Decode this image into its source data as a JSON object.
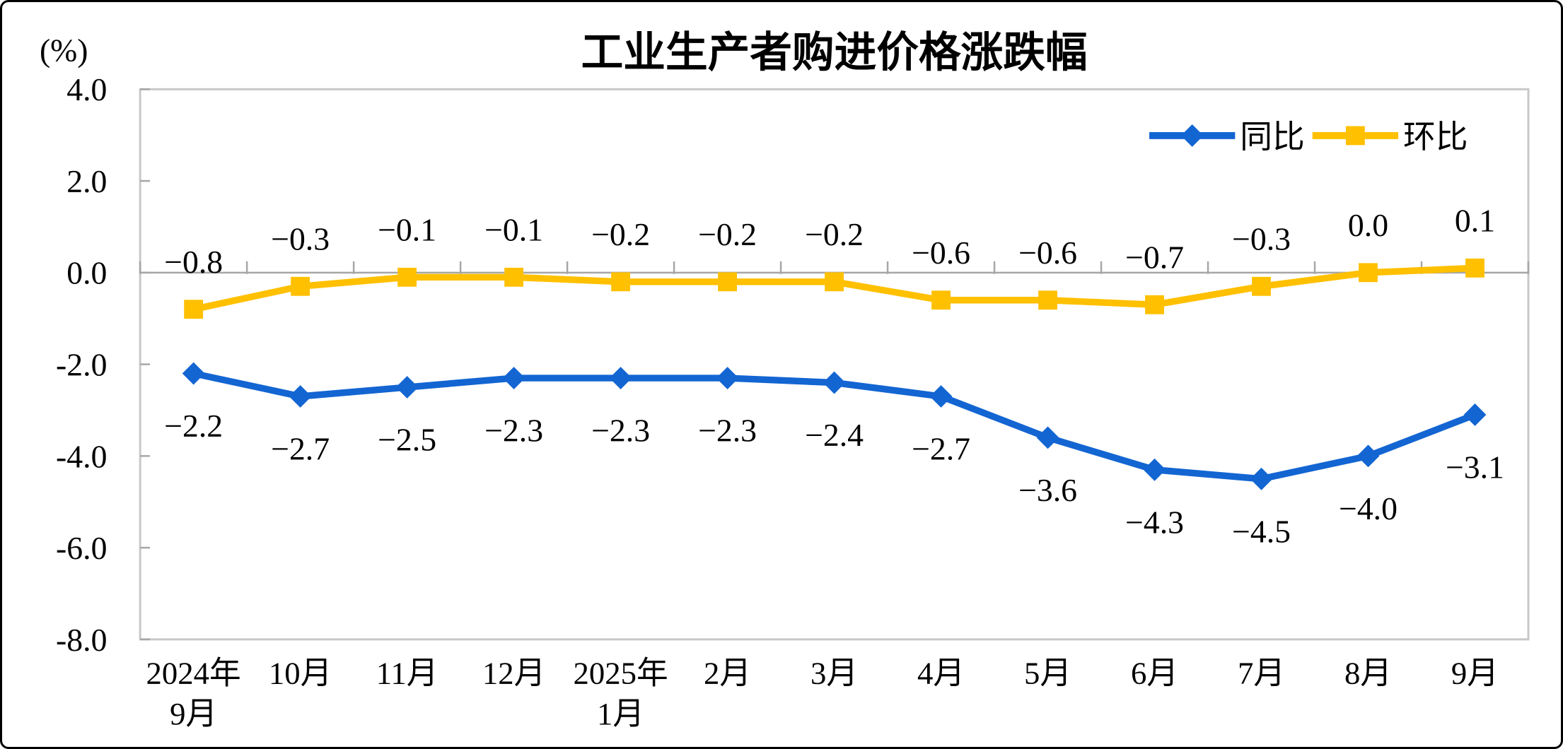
{
  "page": {
    "title": "工业生产者购进价格涨跌幅",
    "unit_label": "(%)"
  },
  "legend": {
    "items": [
      {
        "label": "同比",
        "color": "#1365D2",
        "marker": "diamond"
      },
      {
        "label": "环比",
        "color": "#FFC000",
        "marker": "square"
      }
    ]
  },
  "chart_data": {
    "type": "line",
    "title": "工业生产者购进价格涨跌幅",
    "ylabel": "(%)",
    "ylim": [
      -8.0,
      4.0
    ],
    "ytick_interval": 2.0,
    "grid": false,
    "legend_position": "top-right-inside",
    "axis_color": "#A6A6A6",
    "plot_border_color": "#C8C8C8",
    "text_color": "#000000",
    "yticks": [
      {
        "value": 4.0,
        "label": "4.0"
      },
      {
        "value": 2.0,
        "label": "2.0"
      },
      {
        "value": 0.0,
        "label": "0.0"
      },
      {
        "value": -2.0,
        "label": "-2.0"
      },
      {
        "value": -4.0,
        "label": "-4.0"
      },
      {
        "value": -6.0,
        "label": "-6.0"
      },
      {
        "value": -8.0,
        "label": "-8.0"
      }
    ],
    "categories": [
      {
        "lines": [
          "2024年",
          "9月"
        ]
      },
      {
        "lines": [
          "10月"
        ]
      },
      {
        "lines": [
          "11月"
        ]
      },
      {
        "lines": [
          "12月"
        ]
      },
      {
        "lines": [
          "2025年",
          "1月"
        ]
      },
      {
        "lines": [
          "2月"
        ]
      },
      {
        "lines": [
          "3月"
        ]
      },
      {
        "lines": [
          "4月"
        ]
      },
      {
        "lines": [
          "5月"
        ]
      },
      {
        "lines": [
          "6月"
        ]
      },
      {
        "lines": [
          "7月"
        ]
      },
      {
        "lines": [
          "8月"
        ]
      },
      {
        "lines": [
          "9月"
        ]
      }
    ],
    "series": [
      {
        "name": "同比",
        "color": "#1365D2",
        "marker": "diamond",
        "label_position": "below",
        "values": [
          -2.2,
          -2.7,
          -2.5,
          -2.3,
          -2.3,
          -2.3,
          -2.4,
          -2.7,
          -3.6,
          -4.3,
          -4.5,
          -4.0,
          -3.1
        ],
        "point_labels": [
          "−2.2",
          "−2.7",
          "−2.5",
          "−2.3",
          "−2.3",
          "−2.3",
          "−2.4",
          "−2.7",
          "−3.6",
          "−4.3",
          "−4.5",
          "−4.0",
          "−3.1"
        ]
      },
      {
        "name": "环比",
        "color": "#FFC000",
        "marker": "square",
        "label_position": "above",
        "values": [
          -0.8,
          -0.3,
          -0.1,
          -0.1,
          -0.2,
          -0.2,
          -0.2,
          -0.6,
          -0.6,
          -0.7,
          -0.3,
          0.0,
          0.1
        ],
        "point_labels": [
          "−0.8",
          "−0.3",
          "−0.1",
          "−0.1",
          "−0.2",
          "−0.2",
          "−0.2",
          "−0.6",
          "−0.6",
          "−0.7",
          "−0.3",
          "0.0",
          "0.1"
        ]
      }
    ]
  }
}
